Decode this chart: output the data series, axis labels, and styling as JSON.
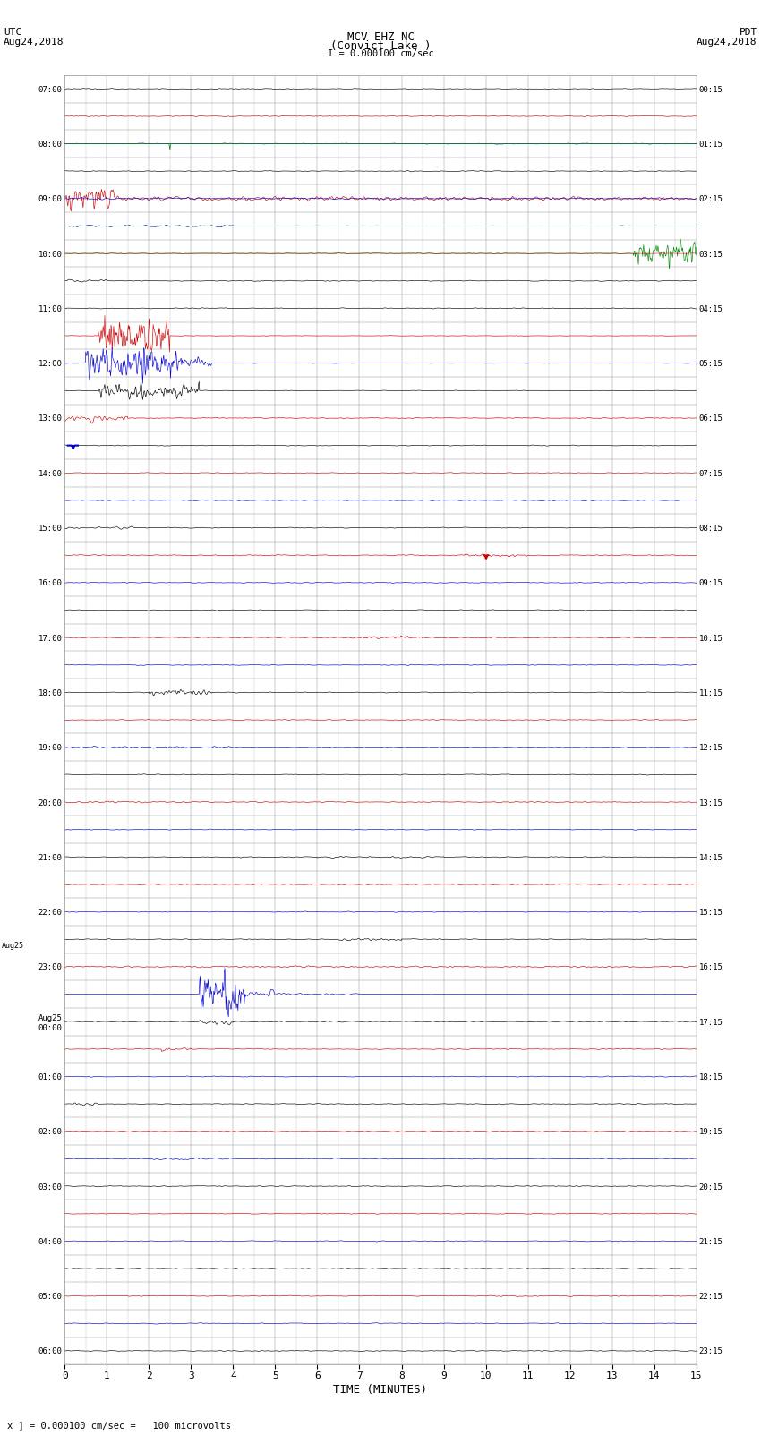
{
  "title_line1": "MCV EHZ NC",
  "title_line2": "(Convict Lake )",
  "title_line3": "I = 0.000100 cm/sec",
  "left_header_line1": "UTC",
  "left_header_line2": "Aug24,2018",
  "right_header_line1": "PDT",
  "right_header_line2": "Aug24,2018",
  "xlabel": "TIME (MINUTES)",
  "footer": "x ] = 0.000100 cm/sec =   100 microvolts",
  "utc_labels": [
    "07:00",
    "",
    "08:00",
    "",
    "09:00",
    "",
    "10:00",
    "",
    "11:00",
    "",
    "12:00",
    "",
    "13:00",
    "",
    "14:00",
    "",
    "15:00",
    "",
    "16:00",
    "",
    "17:00",
    "",
    "18:00",
    "",
    "19:00",
    "",
    "20:00",
    "",
    "21:00",
    "",
    "22:00",
    "",
    "23:00",
    "",
    "Aug25\n00:00",
    "",
    "01:00",
    "",
    "02:00",
    "",
    "03:00",
    "",
    "04:00",
    "",
    "05:00",
    "",
    "06:00",
    ""
  ],
  "pdt_labels": [
    "00:15",
    "",
    "01:15",
    "",
    "02:15",
    "",
    "03:15",
    "",
    "04:15",
    "",
    "05:15",
    "",
    "06:15",
    "",
    "07:15",
    "",
    "08:15",
    "",
    "09:15",
    "",
    "10:15",
    "",
    "11:15",
    "",
    "12:15",
    "",
    "13:15",
    "",
    "14:15",
    "",
    "15:15",
    "",
    "16:15",
    "",
    "17:15",
    "",
    "18:15",
    "",
    "19:15",
    "",
    "20:15",
    "",
    "21:15",
    "",
    "22:15",
    "",
    "23:15",
    ""
  ],
  "x_min": 0,
  "x_max": 15,
  "figsize": [
    8.5,
    16.13
  ],
  "dpi": 100,
  "bg_color": "#ffffff",
  "grid_color": "#999999"
}
